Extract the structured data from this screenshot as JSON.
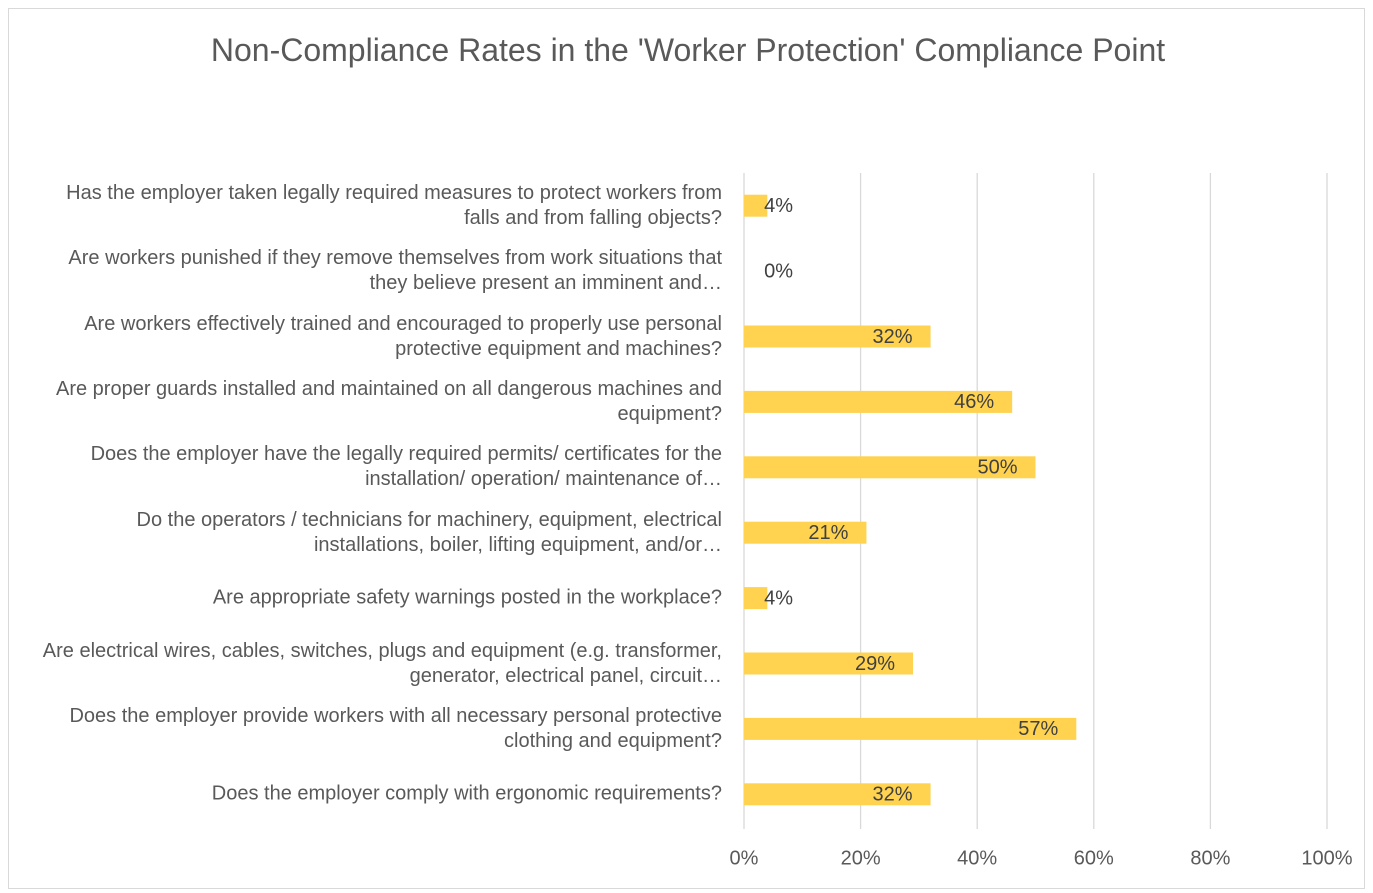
{
  "chart_data": {
    "type": "bar",
    "orientation": "horizontal",
    "title": "Non-Compliance Rates in the 'Worker Protection' Compliance Point",
    "categories": [
      "Has the employer taken legally required measures to protect workers from falls and from falling objects?",
      "Are workers punished if they remove themselves from work situations that they believe present an imminent and…",
      "Are workers effectively trained and encouraged to properly use personal protective equipment and machines?",
      "Are proper guards installed and maintained on all dangerous machines and equipment?",
      "Does the employer have the legally required permits/ certificates for the installation/ operation/ maintenance of…",
      "Do the operators / technicians for machinery, equipment, electrical installations, boiler, lifting equipment, and/or…",
      "Are appropriate safety warnings posted in the workplace?",
      "Are electrical wires, cables, switches, plugs and equipment (e.g. transformer, generator, electrical panel, circuit…",
      "Does the employer provide workers with all necessary personal protective clothing and equipment?",
      "Does the employer comply with ergonomic requirements?"
    ],
    "values": [
      4,
      0,
      32,
      46,
      50,
      21,
      4,
      29,
      57,
      32
    ],
    "value_labels": [
      "4%",
      "0%",
      "32%",
      "46%",
      "50%",
      "21%",
      "4%",
      "29%",
      "57%",
      "32%"
    ],
    "color": "#ffd34f",
    "xlim": [
      0,
      100
    ],
    "xticks": [
      {
        "value": 0,
        "label": "0%"
      },
      {
        "value": 20,
        "label": "20%"
      },
      {
        "value": 40,
        "label": "40%"
      },
      {
        "value": 60,
        "label": "60%"
      },
      {
        "value": 80,
        "label": "80%"
      },
      {
        "value": 100,
        "label": "100%"
      }
    ],
    "grid": true
  }
}
